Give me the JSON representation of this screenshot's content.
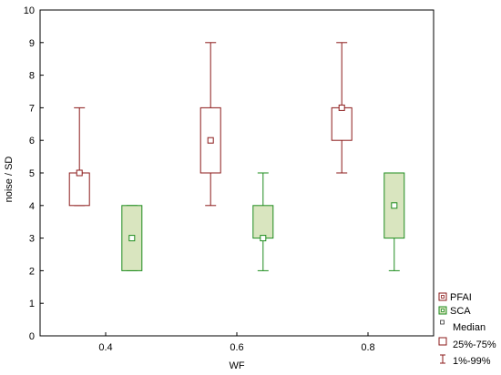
{
  "chart_data": {
    "type": "box",
    "xlabel": "WF",
    "ylabel": "noise / SD",
    "ylim": [
      0,
      10
    ],
    "y_ticks": [
      0,
      1,
      2,
      3,
      4,
      5,
      6,
      7,
      8,
      9,
      10
    ],
    "x_ticks": [
      "0.4",
      "0.6",
      "0.8"
    ],
    "categories": [
      0.4,
      0.6,
      0.8
    ],
    "grid": false,
    "legend_position": "right-bottom, outside plot",
    "series": [
      {
        "name": "PFAI",
        "stroke": "#8b1a1a",
        "fill": "#ffffff",
        "boxes": [
          {
            "x": 0.4,
            "min": 4,
            "q1": 4,
            "median": 5,
            "q3": 5,
            "max": 7
          },
          {
            "x": 0.6,
            "min": 4,
            "q1": 5,
            "median": 6,
            "q3": 7,
            "max": 9
          },
          {
            "x": 0.8,
            "min": 5,
            "q1": 6,
            "median": 7,
            "q3": 7,
            "max": 9
          }
        ]
      },
      {
        "name": "SCA",
        "stroke": "#1e8c1e",
        "fill": "#d9e5bf",
        "boxes": [
          {
            "x": 0.4,
            "min": 2,
            "q1": 2,
            "median": 3,
            "q3": 4,
            "max": 4
          },
          {
            "x": 0.6,
            "min": 2,
            "q1": 3,
            "median": 3,
            "q3": 4,
            "max": 5
          },
          {
            "x": 0.8,
            "min": 2,
            "q1": 3,
            "median": 4,
            "q3": 5,
            "max": 5
          }
        ]
      }
    ],
    "legend": {
      "median_label": "Median",
      "box_label": "25%-75%",
      "whisker_label": "1%-99%"
    }
  }
}
